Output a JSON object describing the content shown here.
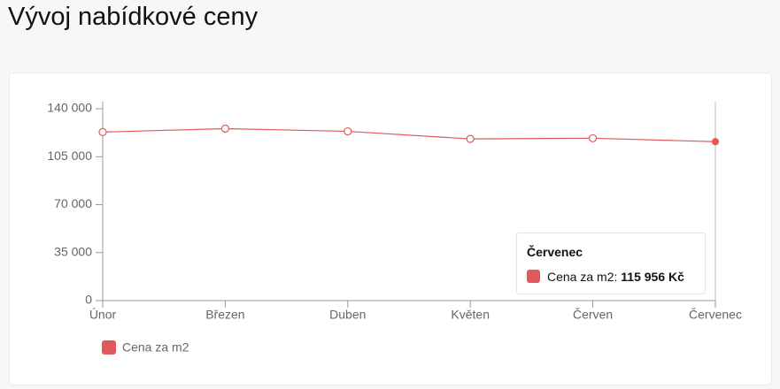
{
  "chart_data": {
    "type": "line",
    "title": "Vývoj nabídkové ceny",
    "categories": [
      "Únor",
      "Březen",
      "Duben",
      "Květen",
      "Červen",
      "Červenec"
    ],
    "series": [
      {
        "name": "Cena za m2",
        "color": "#e05a5a",
        "values": [
          123000,
          125500,
          123500,
          118000,
          118500,
          115956
        ],
        "value_labels": [
          null,
          null,
          null,
          null,
          null,
          "115 956 Kč"
        ]
      }
    ],
    "ylim": [
      0,
      140000
    ],
    "yticks": [
      {
        "value": 0,
        "label": "0"
      },
      {
        "value": 35000,
        "label": "35 000"
      },
      {
        "value": 70000,
        "label": "70 000"
      },
      {
        "value": 105000,
        "label": "105 000"
      },
      {
        "value": 140000,
        "label": "140 000"
      }
    ],
    "grid": false,
    "tooltip_label": "Cena za m2:"
  }
}
